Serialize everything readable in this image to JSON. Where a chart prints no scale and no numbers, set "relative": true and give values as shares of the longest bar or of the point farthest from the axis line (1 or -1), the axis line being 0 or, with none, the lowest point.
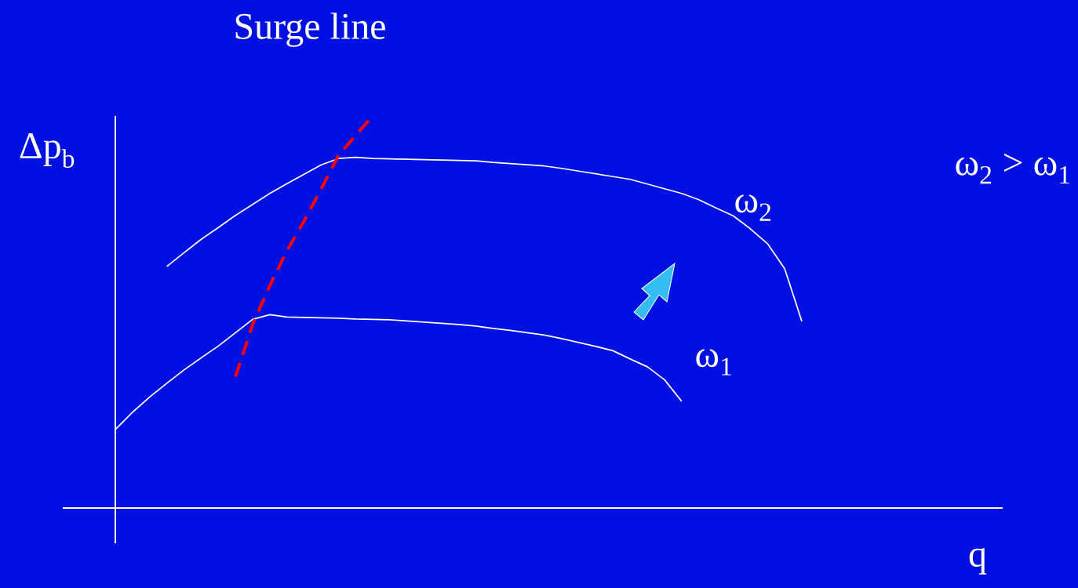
{
  "chart_data": {
    "type": "line",
    "relative": true,
    "title": "Surge line",
    "xlabel": "q",
    "ylabel": "Δp$_{b}$",
    "annotations": [
      "ω$_{2}$ > ω$_{1}$"
    ],
    "categories": [
      null,
      null,
      null,
      null,
      null,
      null,
      null,
      null,
      null,
      null,
      null,
      null,
      null,
      null,
      null,
      null,
      null,
      null,
      null,
      null,
      null,
      null,
      null,
      null,
      null,
      null,
      null,
      null,
      null,
      null,
      null,
      null,
      null,
      null,
      null,
      null,
      null,
      null,
      null,
      null,
      null
    ],
    "series": [
      {
        "name": "ω$_{2}$",
        "color": "#ffffff",
        "values": [
          null,
          null,
          null,
          0.616,
          0.651,
          0.685,
          0.715,
          0.746,
          0.774,
          0.802,
          0.827,
          0.851,
          0.875,
          0.891,
          0.894,
          0.891,
          0.89,
          0.889,
          0.888,
          0.887,
          0.886,
          0.885,
          0.881,
          0.878,
          0.875,
          0.872,
          0.866,
          0.859,
          0.852,
          0.845,
          0.838,
          0.826,
          0.814,
          0.802,
          0.786,
          0.765,
          0.745,
          0.712,
          0.674,
          0.61,
          0.476
        ]
      },
      {
        "name": "ω$_{1}$",
        "color": "#ffffff",
        "values": [
          0.2,
          0.244,
          0.283,
          0.318,
          0.352,
          0.383,
          0.413,
          0.447,
          0.481,
          0.493,
          0.487,
          0.486,
          0.485,
          0.484,
          0.482,
          0.481,
          0.48,
          0.477,
          0.474,
          0.471,
          0.468,
          0.464,
          0.458,
          0.453,
          0.447,
          0.441,
          0.432,
          0.422,
          0.412,
          0.401,
          0.38,
          0.36,
          0.327,
          0.272,
          null,
          null,
          null,
          null,
          null,
          null,
          null
        ]
      },
      {
        "color": "#ff0000",
        "line_style": "dashed",
        "values": [
          null,
          null,
          null,
          null,
          null,
          null,
          null,
          0.335,
          0.468,
          0.567,
          0.656,
          0.732,
          0.814,
          0.899,
          0.95,
          1,
          null,
          null,
          null,
          null,
          null,
          null,
          null,
          null,
          null,
          null,
          null,
          null,
          null,
          null,
          null,
          null,
          null,
          null,
          null,
          null,
          null,
          null,
          null,
          null,
          null
        ]
      }
    ]
  }
}
